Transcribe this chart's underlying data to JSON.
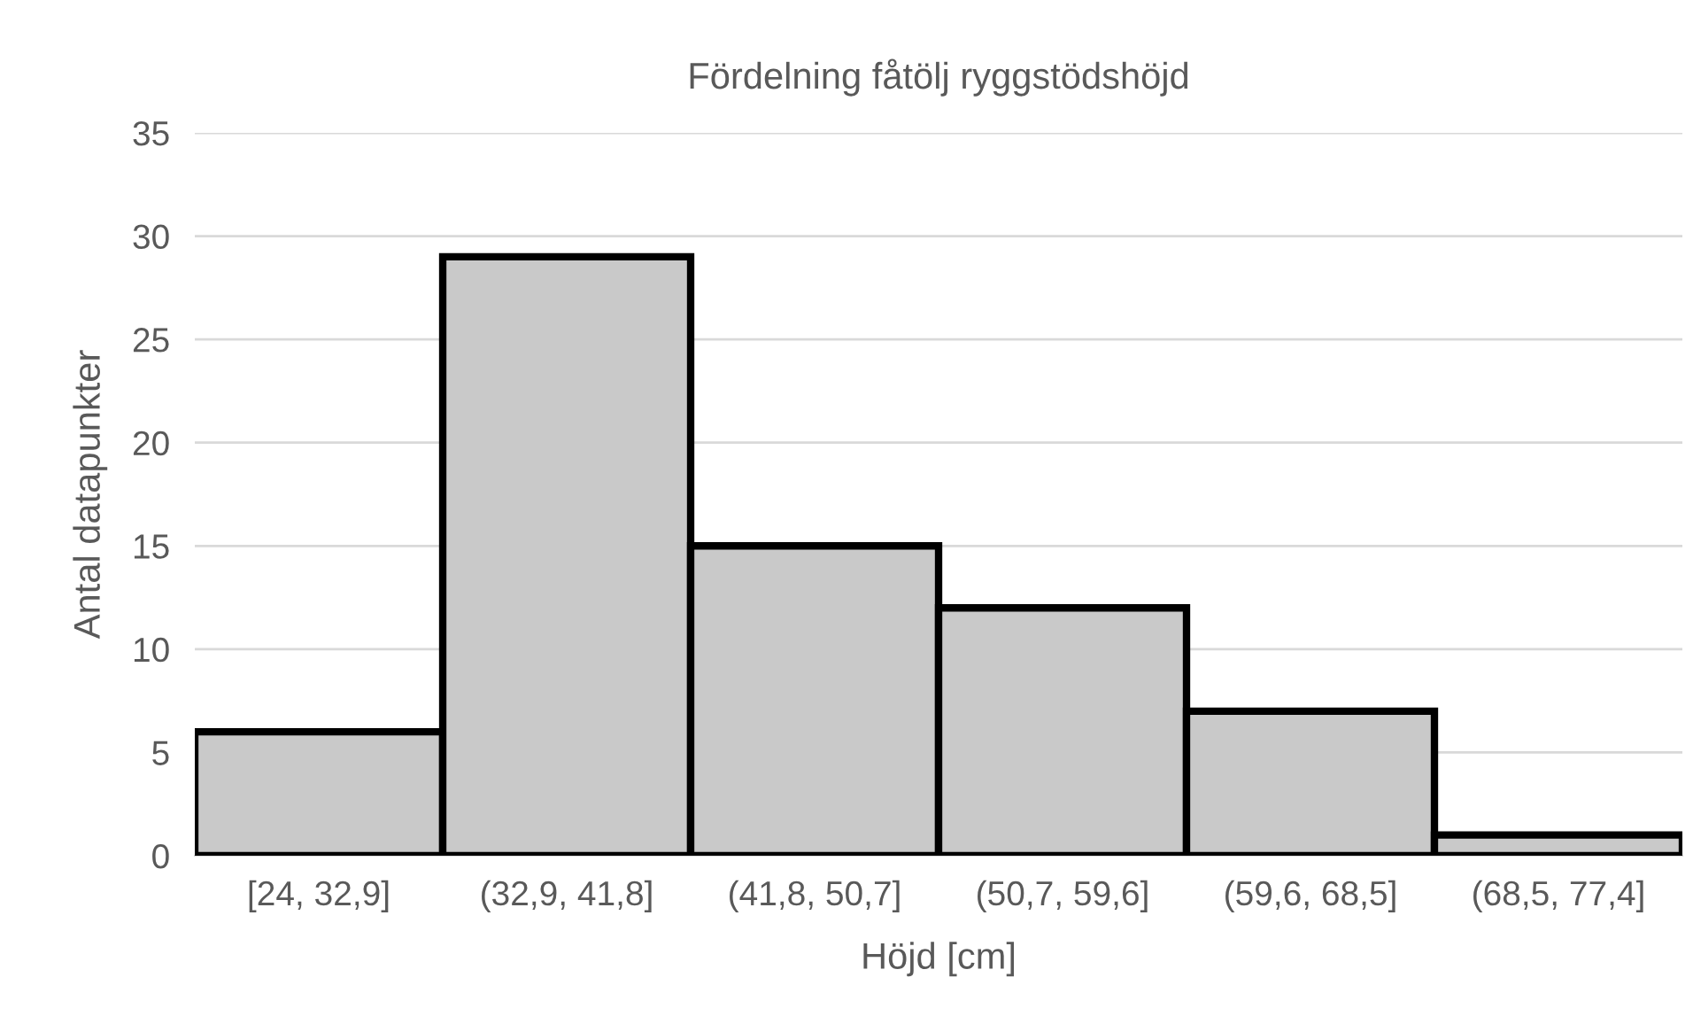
{
  "chart_data": {
    "type": "bar",
    "title": "Fördelning fåtölj ryggstödshöjd",
    "xlabel": "Höjd [cm]",
    "ylabel": "Antal datapunkter",
    "categories": [
      "[24, 32,9]",
      "(32,9, 41,8]",
      "(41,8, 50,7]",
      "(50,7, 59,6]",
      "(59,6, 68,5]",
      "(68,5, 77,4]"
    ],
    "values": [
      6,
      29,
      15,
      12,
      7,
      1
    ],
    "color": "#c9c9c9",
    "ylim": [
      0,
      35
    ],
    "yticks": [
      0,
      5,
      10,
      15,
      20,
      25,
      30,
      35
    ],
    "grid": "y"
  }
}
